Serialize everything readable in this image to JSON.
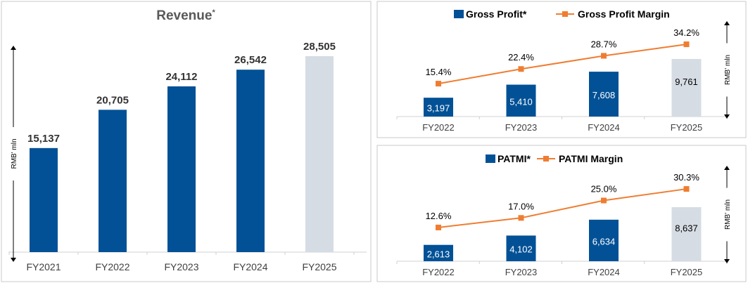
{
  "colors": {
    "bar": "#025196",
    "bar_forecast": "#d6dce4",
    "line": "#ef7d31",
    "text": "#333333",
    "axis_text": "#404040",
    "title": "#595959"
  },
  "chart_data": [
    {
      "type": "bar",
      "title": "Revenue",
      "title_superscript": "*",
      "ylabel": "RMB' mln",
      "categories": [
        "FY2021",
        "FY2022",
        "FY2023",
        "FY2024",
        "FY2025"
      ],
      "values": [
        15137,
        20705,
        24112,
        26542,
        28505
      ],
      "value_labels": [
        "15,137",
        "20,705",
        "24,112",
        "26,542",
        "28,505"
      ],
      "highlighted_last": true,
      "ylim": [
        0,
        28505
      ],
      "grid": false
    },
    {
      "type": "bar+line",
      "ylabel": "RMB' mln",
      "legend_position": "top",
      "categories": [
        "FY2022",
        "FY2023",
        "FY2024",
        "FY2025"
      ],
      "series": [
        {
          "name": "Gross Profit*",
          "type": "bar",
          "values": [
            3197,
            5410,
            7608,
            9761
          ],
          "labels": [
            "3,197",
            "5,410",
            "7,608",
            "9,761"
          ]
        },
        {
          "name": "Gross Profit Margin",
          "type": "line",
          "values": [
            15.4,
            22.4,
            28.7,
            34.2
          ],
          "labels": [
            "15.4%",
            "22.4%",
            "28.7%",
            "34.2%"
          ]
        }
      ],
      "grid": false
    },
    {
      "type": "bar+line",
      "ylabel": "RMB' mln",
      "legend_position": "top",
      "categories": [
        "FY2022",
        "FY2023",
        "FY2024",
        "FY2025"
      ],
      "series": [
        {
          "name": "PATMI*",
          "type": "bar",
          "values": [
            2613,
            4102,
            6634,
            8637
          ],
          "labels": [
            "2,613",
            "4,102",
            "6,634",
            "8,637"
          ]
        },
        {
          "name": "PATMI Margin",
          "type": "line",
          "values": [
            12.6,
            17.0,
            25.0,
            30.3
          ],
          "labels": [
            "12.6%",
            "17.0%",
            "25.0%",
            "30.3%"
          ]
        }
      ],
      "grid": false
    }
  ]
}
